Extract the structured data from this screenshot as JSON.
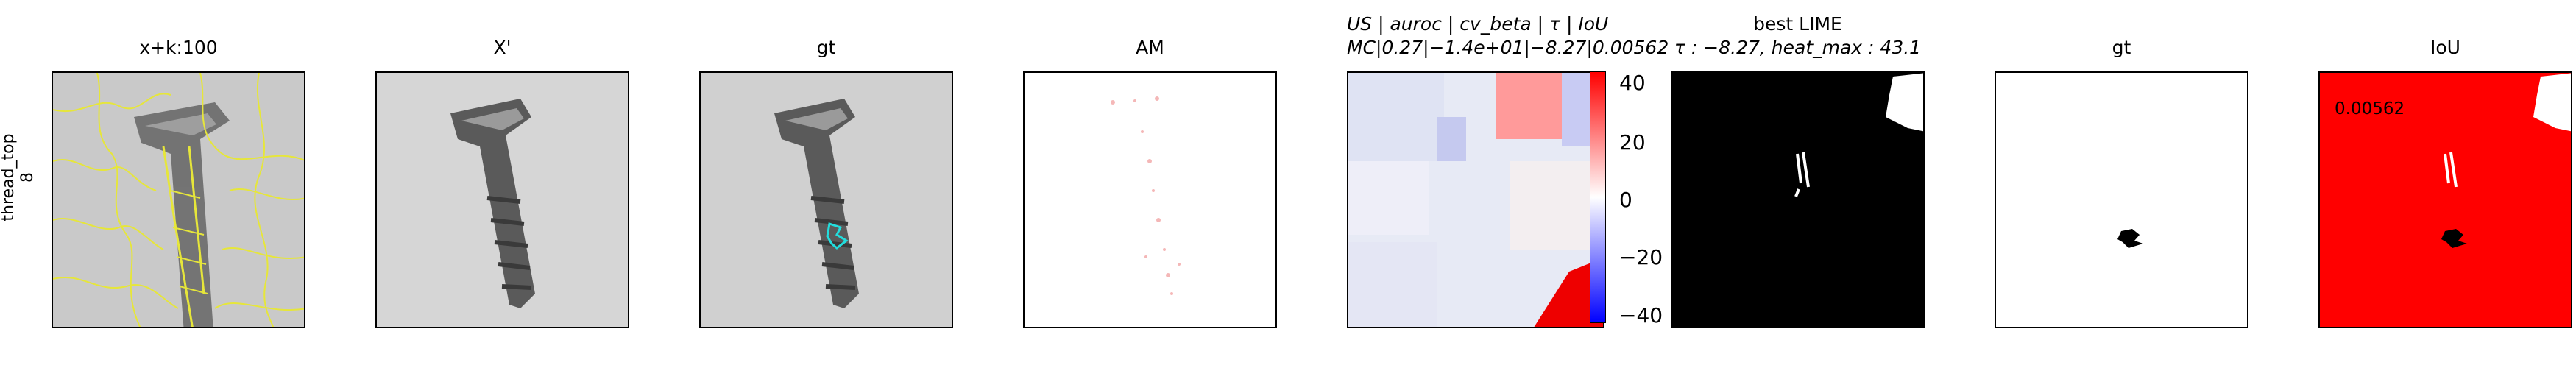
{
  "row_label": "thread_top\n8",
  "panels": [
    {
      "title": "x+k:100"
    },
    {
      "title": "X'"
    },
    {
      "title": "gt"
    },
    {
      "title": "AM"
    },
    {
      "title_line1": "US | auroc | cv_beta | τ | IoU",
      "title_line2": "MC|0.27|−1.4e+01|−8.27|0.00562"
    },
    {
      "title_line1": "best LIME",
      "title_line2": "τ : −8.27, heat_max : 43.1"
    },
    {
      "title": "gt"
    },
    {
      "title": "IoU"
    }
  ],
  "colorbar": {
    "ticks": [
      "40",
      "20",
      "0",
      "−20",
      "−40"
    ],
    "range": [
      -43.1,
      43.1
    ]
  },
  "iou_value": "0.00562",
  "colors": {
    "segment": "#e6e63a",
    "gt_contour": "#22dddd",
    "pos": "#ff0000",
    "neg": "#0000ff"
  }
}
